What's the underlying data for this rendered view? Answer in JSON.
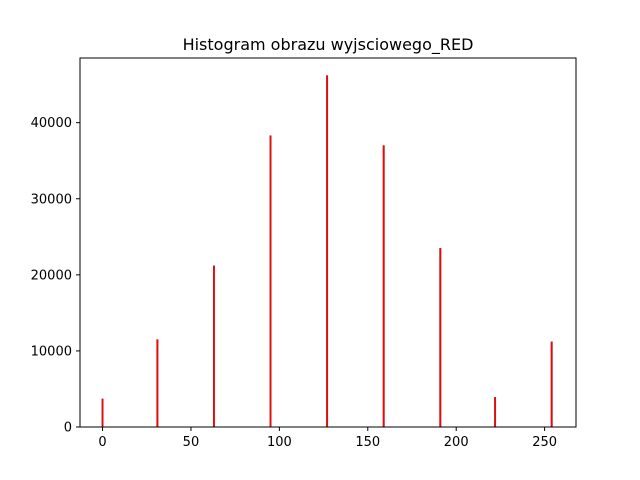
{
  "chart_data": {
    "type": "bar",
    "title": "Histogram obrazu wyjsciowego_RED",
    "xlabel": "",
    "ylabel": "",
    "xlim": [
      -12.75,
      267.75
    ],
    "ylim": [
      0,
      48500
    ],
    "xticks": [
      0,
      50,
      100,
      150,
      200,
      250
    ],
    "yticks": [
      0,
      10000,
      20000,
      30000,
      40000
    ],
    "bar_color": "#ff0000",
    "edge_color": "#8b0000",
    "x": [
      0,
      31,
      63,
      95,
      127,
      159,
      191,
      222,
      254
    ],
    "values": [
      3700,
      11500,
      21200,
      38300,
      46200,
      37000,
      23500,
      3900,
      11200
    ],
    "grid": false,
    "legend": "none"
  }
}
